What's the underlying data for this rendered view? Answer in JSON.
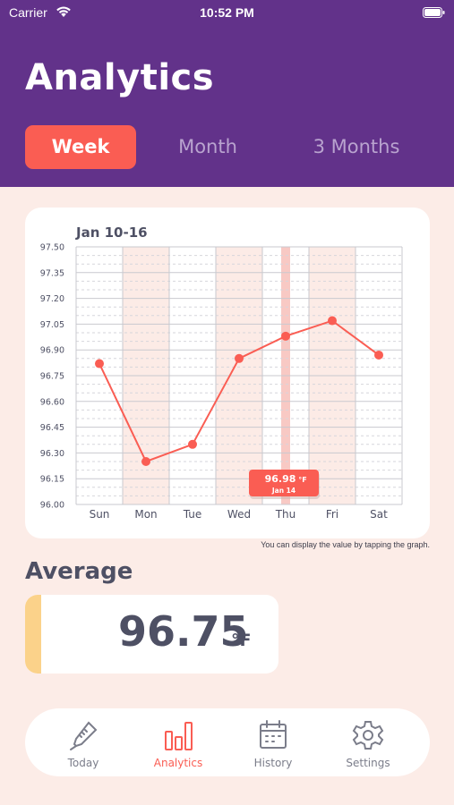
{
  "status_bar": {
    "carrier": "Carrier",
    "time": "10:52 PM"
  },
  "page_title": "Analytics",
  "tabs": [
    {
      "label": "Week",
      "active": true
    },
    {
      "label": "Month",
      "active": false
    },
    {
      "label": "3 Months",
      "active": false
    }
  ],
  "chart": {
    "title": "Jan 10-16",
    "hint": "You can display the value by tapping the graph.",
    "tooltip": {
      "value": "96.98",
      "unit": "°F",
      "date": "Jan 14"
    }
  },
  "chart_data": {
    "type": "line",
    "title": "Jan 10-16",
    "categories": [
      "Sun",
      "Mon",
      "Tue",
      "Wed",
      "Thu",
      "Fri",
      "Sat"
    ],
    "values": [
      96.82,
      96.25,
      96.35,
      96.85,
      96.98,
      97.07,
      96.87
    ],
    "yticks": [
      "97.50",
      "97.35",
      "97.20",
      "97.05",
      "96.90",
      "96.75",
      "96.60",
      "96.45",
      "96.30",
      "96.15",
      "96.00"
    ],
    "ylim": [
      96.0,
      97.5
    ],
    "highlighted_days": [
      "Mon",
      "Wed",
      "Fri"
    ],
    "selected": "Thu",
    "grid": true
  },
  "average": {
    "heading": "Average",
    "value": "96.75",
    "unit": "°F"
  },
  "nav": [
    {
      "label": "Today",
      "icon": "thermometer-icon",
      "active": false
    },
    {
      "label": "Analytics",
      "icon": "bar-chart-icon",
      "active": true
    },
    {
      "label": "History",
      "icon": "calendar-icon",
      "active": false
    },
    {
      "label": "Settings",
      "icon": "gear-icon",
      "active": false
    }
  ],
  "colors": {
    "header": "#62328a",
    "accent": "#fa5d53",
    "background": "#fcece7",
    "stripe": "#fbd28a",
    "text": "#4e5064"
  }
}
